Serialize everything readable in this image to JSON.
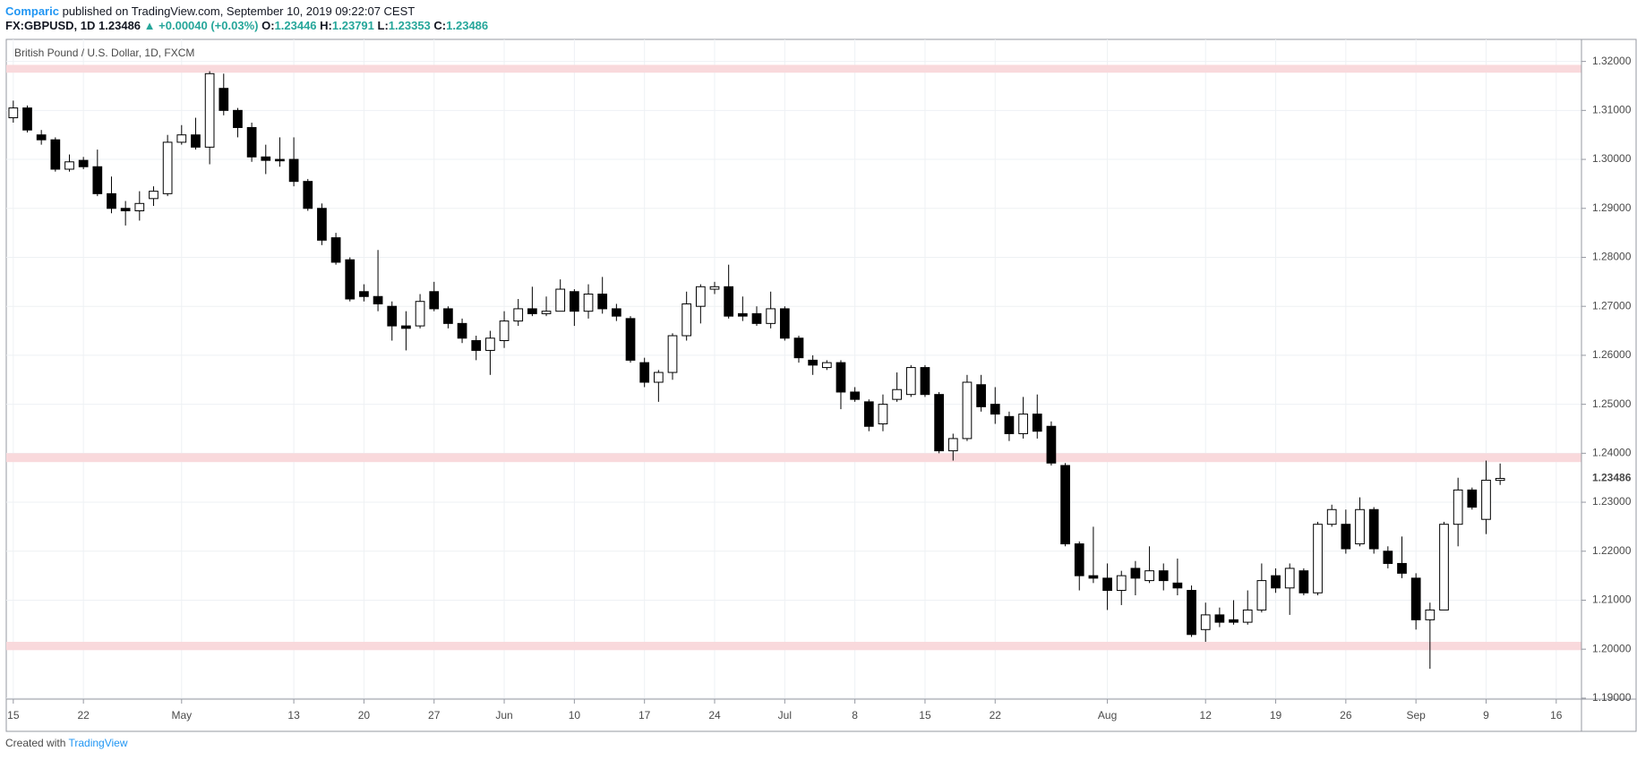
{
  "header": {
    "author": "Comparic",
    "published": "published on TradingView.com, September 10, 2019 09:22:07 CEST",
    "symbol": "FX:GBPUSD, 1D",
    "last": "1.23486",
    "change": "+0.00040 (+0.03%)",
    "ohlc": [
      {
        "label": "O:",
        "value": "1.23446"
      },
      {
        "label": "H:",
        "value": "1.23791"
      },
      {
        "label": "L:",
        "value": "1.23353"
      },
      {
        "label": "C:",
        "value": "1.23486"
      }
    ]
  },
  "chart_data": {
    "type": "candlestick",
    "title": "British Pound / U.S. Dollar, 1D, FXCM",
    "up_color": "#ffffff",
    "down_color": "#000000",
    "wick_color": "#000000",
    "grid": true,
    "xlim": [
      -0.5,
      111.8
    ],
    "xticks": [
      {
        "value": 0,
        "label": "15"
      },
      {
        "value": 5,
        "label": "22"
      },
      {
        "value": 12,
        "label": "May"
      },
      {
        "value": 20,
        "label": "13"
      },
      {
        "value": 25,
        "label": "20"
      },
      {
        "value": 30,
        "label": "27"
      },
      {
        "value": 35,
        "label": "Jun"
      },
      {
        "value": 40,
        "label": "10"
      },
      {
        "value": 45,
        "label": "17"
      },
      {
        "value": 50,
        "label": "24"
      },
      {
        "value": 55,
        "label": "Jul"
      },
      {
        "value": 60,
        "label": "8"
      },
      {
        "value": 65,
        "label": "15"
      },
      {
        "value": 70,
        "label": "22"
      },
      {
        "value": 78,
        "label": "Aug"
      },
      {
        "value": 85,
        "label": "12"
      },
      {
        "value": 90,
        "label": "19"
      },
      {
        "value": 95,
        "label": "26"
      },
      {
        "value": 100,
        "label": "Sep"
      },
      {
        "value": 105,
        "label": "9"
      },
      {
        "value": 110,
        "label": "16"
      }
    ],
    "ylim": [
      1.1898,
      1.3245
    ],
    "yticks": [
      {
        "value": 1.19,
        "label": "1.19000"
      },
      {
        "value": 1.2,
        "label": "1.20000"
      },
      {
        "value": 1.21,
        "label": "1.21000"
      },
      {
        "value": 1.22,
        "label": "1.22000"
      },
      {
        "value": 1.23,
        "label": "1.23000"
      },
      {
        "value": 1.24,
        "label": "1.24000"
      },
      {
        "value": 1.25,
        "label": "1.25000"
      },
      {
        "value": 1.26,
        "label": "1.26000"
      },
      {
        "value": 1.27,
        "label": "1.27000"
      },
      {
        "value": 1.28,
        "label": "1.28000"
      },
      {
        "value": 1.29,
        "label": "1.29000"
      },
      {
        "value": 1.3,
        "label": "1.30000"
      },
      {
        "value": 1.31,
        "label": "1.31000"
      },
      {
        "value": 1.32,
        "label": "1.32000"
      }
    ],
    "price_label": {
      "value": 1.23486,
      "label": "1.23486"
    },
    "zone_color": "#f9d9dc",
    "zones": [
      {
        "low": 1.3177,
        "high": 1.3193
      },
      {
        "low": 1.2382,
        "high": 1.24
      },
      {
        "low": 1.1998,
        "high": 1.2015
      }
    ],
    "open": [
      1.3085,
      1.3105,
      1.305,
      1.304,
      1.298,
      1.2998,
      1.2985,
      1.293,
      1.29,
      1.2895,
      1.292,
      1.293,
      1.3035,
      1.305,
      1.3025,
      1.3145,
      1.31,
      1.3065,
      1.3005,
      1.3,
      1.3,
      1.2955,
      1.29,
      1.284,
      1.2795,
      1.273,
      1.272,
      1.27,
      1.266,
      1.266,
      1.273,
      1.2695,
      1.2665,
      1.263,
      1.261,
      1.263,
      1.267,
      1.2695,
      1.2685,
      1.269,
      1.273,
      1.269,
      1.2725,
      1.2695,
      1.2675,
      1.2585,
      1.2545,
      1.2565,
      1.264,
      1.27,
      1.2735,
      1.274,
      1.2685,
      1.2685,
      1.2665,
      1.2695,
      1.2635,
      1.259,
      1.2575,
      1.2585,
      1.2525,
      1.2505,
      1.246,
      1.251,
      1.252,
      1.2575,
      1.252,
      1.2405,
      1.243,
      1.254,
      1.25,
      1.2475,
      1.244,
      1.248,
      1.2455,
      1.2375,
      1.2215,
      1.215,
      1.2145,
      1.212,
      1.2165,
      1.214,
      1.216,
      1.2135,
      1.212,
      1.204,
      1.207,
      1.206,
      1.2055,
      1.208,
      1.215,
      1.2125,
      1.216,
      1.2115,
      1.2255,
      1.2255,
      1.2215,
      1.2285,
      1.22,
      1.2175,
      1.2145,
      1.206,
      1.208,
      1.2255,
      1.2325,
      1.2265,
      1.23446
    ],
    "high": [
      1.312,
      1.311,
      1.306,
      1.3045,
      1.301,
      1.3005,
      1.302,
      1.2965,
      1.2915,
      1.2935,
      1.2945,
      1.305,
      1.307,
      1.3085,
      1.318,
      1.3175,
      1.3105,
      1.3075,
      1.303,
      1.3045,
      1.3045,
      1.296,
      1.291,
      1.285,
      1.28,
      1.2745,
      1.2815,
      1.271,
      1.269,
      1.2725,
      1.275,
      1.27,
      1.2675,
      1.264,
      1.265,
      1.269,
      1.2715,
      1.274,
      1.272,
      1.2755,
      1.2735,
      1.2745,
      1.276,
      1.2705,
      1.268,
      1.2595,
      1.257,
      1.2645,
      1.273,
      1.2745,
      1.275,
      1.2785,
      1.272,
      1.27,
      1.273,
      1.27,
      1.264,
      1.26,
      1.259,
      1.259,
      1.2535,
      1.251,
      1.252,
      1.2565,
      1.258,
      1.258,
      1.2525,
      1.244,
      1.256,
      1.256,
      1.2535,
      1.2485,
      1.2515,
      1.252,
      1.2465,
      1.238,
      1.222,
      1.225,
      1.2175,
      1.216,
      1.218,
      1.221,
      1.2175,
      1.2185,
      1.213,
      1.2095,
      1.2085,
      1.21,
      1.212,
      1.2175,
      1.2165,
      1.2175,
      1.2165,
      1.226,
      1.2295,
      1.2285,
      1.231,
      1.229,
      1.221,
      1.223,
      1.2155,
      1.2095,
      1.226,
      1.235,
      1.233,
      1.2385,
      1.23791
    ],
    "low": [
      1.3075,
      1.3055,
      1.303,
      1.2975,
      1.2975,
      1.298,
      1.2925,
      1.289,
      1.2865,
      1.2875,
      1.2905,
      1.2925,
      1.303,
      1.302,
      1.299,
      1.309,
      1.3045,
      1.2995,
      1.297,
      1.2985,
      1.2945,
      1.2895,
      1.2825,
      1.2785,
      1.271,
      1.271,
      1.269,
      1.263,
      1.261,
      1.2655,
      1.269,
      1.2655,
      1.2625,
      1.259,
      1.256,
      1.2615,
      1.266,
      1.268,
      1.268,
      1.269,
      1.266,
      1.2675,
      1.2685,
      1.267,
      1.2585,
      1.2535,
      1.2505,
      1.255,
      1.263,
      1.2665,
      1.2725,
      1.2675,
      1.267,
      1.266,
      1.2655,
      1.263,
      1.2585,
      1.256,
      1.257,
      1.249,
      1.2505,
      1.2445,
      1.2445,
      1.2505,
      1.2515,
      1.2515,
      1.24,
      1.2385,
      1.2425,
      1.2485,
      1.246,
      1.2425,
      1.243,
      1.243,
      1.2375,
      1.221,
      1.212,
      1.2135,
      1.208,
      1.209,
      1.211,
      1.2135,
      1.212,
      1.211,
      1.2025,
      1.2015,
      1.2045,
      1.205,
      1.205,
      1.2075,
      1.2115,
      1.207,
      1.211,
      1.211,
      1.225,
      1.2195,
      1.221,
      1.2195,
      1.2165,
      1.2145,
      1.204,
      1.196,
      1.208,
      1.221,
      1.2285,
      1.2235,
      1.23353
    ],
    "close": [
      1.3105,
      1.306,
      1.304,
      1.298,
      1.2995,
      1.2985,
      1.293,
      1.29,
      1.2895,
      1.291,
      1.2935,
      1.3035,
      1.305,
      1.3025,
      1.3175,
      1.31,
      1.3065,
      1.3005,
      1.2998,
      1.2997,
      1.2955,
      1.29,
      1.2835,
      1.279,
      1.2715,
      1.272,
      1.2705,
      1.266,
      1.2655,
      1.271,
      1.2695,
      1.2665,
      1.2635,
      1.261,
      1.2635,
      1.267,
      1.2695,
      1.2685,
      1.269,
      1.2735,
      1.269,
      1.2725,
      1.2695,
      1.268,
      1.259,
      1.2545,
      1.2565,
      1.264,
      1.2705,
      1.274,
      1.274,
      1.268,
      1.268,
      1.2665,
      1.2695,
      1.2635,
      1.2595,
      1.258,
      1.2585,
      1.2525,
      1.251,
      1.2455,
      1.25,
      1.253,
      1.2575,
      1.252,
      1.2405,
      1.243,
      1.2545,
      1.2495,
      1.248,
      1.244,
      1.248,
      1.2445,
      1.238,
      1.2215,
      1.215,
      1.2145,
      1.212,
      1.215,
      1.2145,
      1.216,
      1.214,
      1.2125,
      1.203,
      1.207,
      1.2055,
      1.2055,
      1.208,
      1.214,
      1.2125,
      1.2165,
      1.2115,
      1.2255,
      1.2285,
      1.2205,
      1.2285,
      1.2205,
      1.2175,
      1.2155,
      1.206,
      1.208,
      1.2255,
      1.2325,
      1.229,
      1.2345,
      1.23486
    ]
  }
}
